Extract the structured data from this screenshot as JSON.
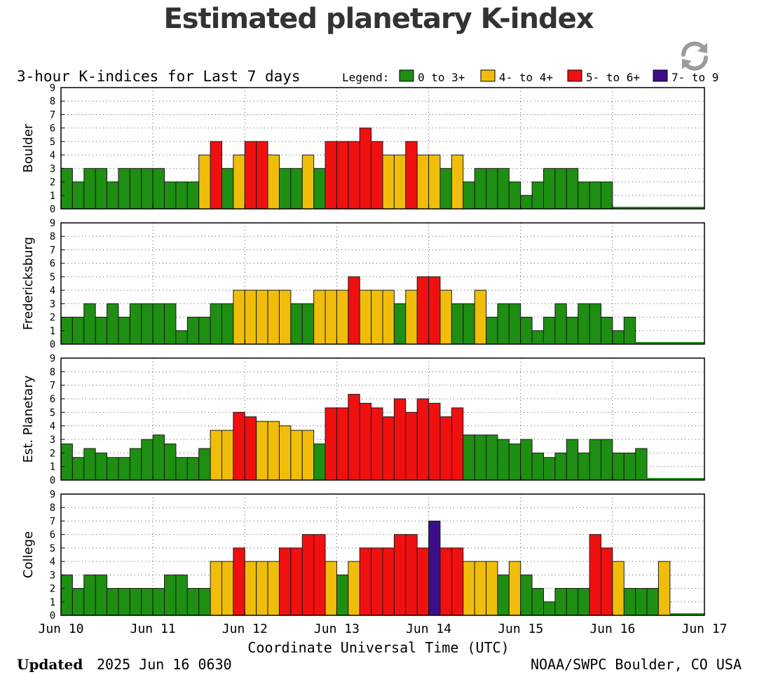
{
  "page": {
    "title": "Estimated planetary K-index",
    "updated_label": "Updated",
    "updated_value": "2025 Jun 16 0630",
    "credit": "NOAA/SWPC Boulder, CO USA",
    "refresh_icon": "refresh-icon"
  },
  "chart_data": {
    "type": "bar",
    "title": "3-hour K-indices for Last 7 days",
    "xlabel": "Coordinate Universal Time (UTC)",
    "ylim": [
      0,
      9
    ],
    "y_ticks": [
      "0",
      "1",
      "2",
      "3",
      "4",
      "5",
      "6",
      "7",
      "8",
      "9"
    ],
    "x_ticks": [
      "Jun 10",
      "Jun 11",
      "Jun 12",
      "Jun 13",
      "Jun 14",
      "Jun 15",
      "Jun 16",
      "Jun 17"
    ],
    "grid": true,
    "legend": {
      "label": "Legend:",
      "entries": [
        {
          "label": "0 to 3+",
          "color": "#1e8f12"
        },
        {
          "label": "4- to 4+",
          "color": "#f0be0a"
        },
        {
          "label": "5- to 6+",
          "color": "#f01010"
        },
        {
          "label": "7- to 9",
          "color": "#3c0f8a"
        }
      ]
    },
    "bar_border_color": "#1a1a1a",
    "series": [
      {
        "name": "Boulder",
        "values": [
          3,
          2,
          3,
          3,
          2,
          3,
          3,
          3,
          3,
          2,
          2,
          2,
          4,
          5,
          3,
          4,
          5,
          5,
          4,
          3,
          3,
          4,
          3,
          5,
          5,
          5,
          6,
          5,
          4,
          4,
          5,
          4,
          4,
          3,
          4,
          2,
          3,
          3,
          3,
          2,
          1,
          2,
          3,
          3,
          3,
          2,
          2,
          2,
          0,
          0,
          0,
          0,
          0,
          0,
          0,
          0
        ]
      },
      {
        "name": "Fredericksburg",
        "values": [
          2,
          2,
          3,
          2,
          3,
          2,
          3,
          3,
          3,
          3,
          1,
          2,
          2,
          3,
          3,
          4,
          4,
          4,
          4,
          4,
          3,
          3,
          4,
          4,
          4,
          5,
          4,
          4,
          4,
          3,
          4,
          5,
          5,
          4,
          3,
          3,
          4,
          2,
          3,
          3,
          2,
          1,
          2,
          3,
          2,
          3,
          3,
          2,
          1,
          2,
          0,
          0,
          0,
          0,
          0,
          0
        ]
      },
      {
        "name": "Est. Planetary",
        "values": [
          2.67,
          1.67,
          2.33,
          2,
          1.67,
          1.67,
          2.33,
          3,
          3.33,
          2.67,
          1.67,
          1.67,
          2.33,
          3.67,
          3.67,
          5,
          4.67,
          4.33,
          4.33,
          4,
          3.67,
          3.67,
          2.67,
          5.33,
          5.33,
          6.33,
          5.67,
          5.33,
          4.67,
          6,
          5,
          6,
          5.67,
          4.67,
          5.33,
          3.33,
          3.33,
          3.33,
          3,
          2.67,
          3,
          2,
          1.67,
          2,
          3,
          2,
          3,
          3,
          2,
          2,
          2.33,
          0,
          0,
          0,
          0,
          0
        ]
      },
      {
        "name": "College",
        "values": [
          3,
          2,
          3,
          3,
          2,
          2,
          2,
          2,
          2,
          3,
          3,
          2,
          2,
          4,
          4,
          5,
          4,
          4,
          4,
          5,
          5,
          6,
          6,
          4,
          3,
          4,
          5,
          5,
          5,
          6,
          6,
          5,
          7,
          5,
          5,
          4,
          4,
          4,
          3,
          4,
          3,
          2,
          1,
          2,
          2,
          2,
          6,
          5,
          4,
          2,
          2,
          2,
          4,
          0,
          0,
          0
        ]
      }
    ]
  }
}
